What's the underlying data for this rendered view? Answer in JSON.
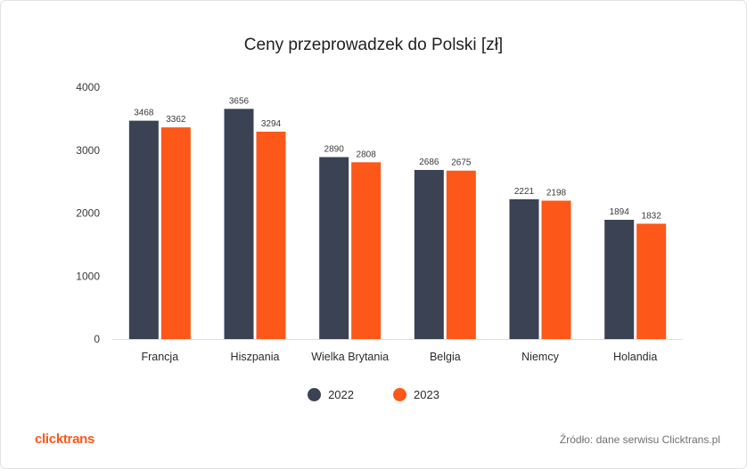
{
  "title": "Ceny przeprowadzek do Polski [zł]",
  "chart_data": {
    "type": "bar",
    "title": "Ceny przeprowadzek do Polski [zł]",
    "categories": [
      "Francja",
      "Hiszpania",
      "Wielka Brytania",
      "Belgia",
      "Niemcy",
      "Holandia"
    ],
    "series": [
      {
        "name": "2022",
        "color": "#3a4254",
        "values": [
          3468,
          3656,
          2890,
          2686,
          2221,
          1894
        ]
      },
      {
        "name": "2023",
        "color": "#fd5719",
        "values": [
          3362,
          3294,
          2808,
          2675,
          2198,
          1832
        ]
      }
    ],
    "ylim": [
      0,
      4000
    ],
    "yticks": [
      "0",
      "1000",
      "2000",
      "3000",
      "4000"
    ],
    "grid": false,
    "legend": "bottom-center",
    "data_labels": true
  },
  "logo": {
    "text": "clicktrans",
    "color": "#fd5719"
  },
  "source": "Źródło: dane serwisu Clicktrans.pl"
}
